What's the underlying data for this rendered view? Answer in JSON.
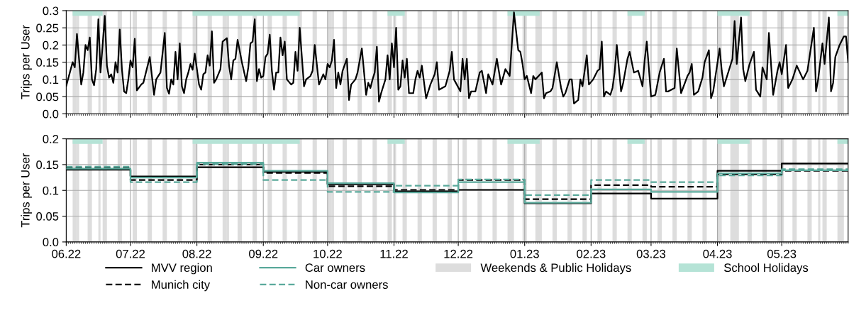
{
  "chart_data": [
    {
      "type": "line",
      "ylabel": "Trips per User",
      "xlim": [
        "2022-06-01",
        "2023-06-01"
      ],
      "ylim": [
        0,
        0.3
      ],
      "yticks": [
        {
          "value": 0,
          "label": "0.0"
        },
        0.05,
        0.1,
        0.15,
        0.2,
        0.25,
        0.3
      ],
      "xticks": [
        {
          "value": "2022-06-01",
          "label": null
        },
        {
          "value": "2022-07-01",
          "label": null
        },
        {
          "value": "2022-08-01",
          "label": null
        },
        {
          "value": "2022-09-01",
          "label": null
        },
        {
          "value": "2022-10-01",
          "label": null
        },
        {
          "value": "2022-11-01",
          "label": null
        },
        {
          "value": "2022-12-01",
          "label": null
        },
        {
          "value": "2023-01-01",
          "label": null
        },
        {
          "value": "2023-02-01",
          "label": null
        },
        {
          "value": "2023-03-01",
          "label": null
        },
        {
          "value": "2023-04-01",
          "label": null
        },
        {
          "value": "2023-05-01",
          "label": null
        }
      ],
      "tick_labels": "y",
      "grid": true,
      "series": [
        {
          "color": "#000000",
          "line_style": "solid",
          "x": [
            "2022-06-01",
            "2022-06-04",
            "2022-06-05",
            "2022-06-06",
            "2022-06-08",
            "2022-06-09",
            "2022-06-10",
            "2022-06-11",
            "2022-06-12",
            "2022-06-13",
            "2022-06-14",
            "2022-06-15",
            "2022-06-16",
            "2022-06-17",
            "2022-06-18",
            "2022-06-19",
            "2022-06-20",
            "2022-06-21",
            "2022-06-22",
            "2022-06-23",
            "2022-06-24",
            "2022-06-25",
            "2022-06-26",
            "2022-06-27",
            "2022-06-28",
            "2022-06-29",
            "2022-06-30",
            "2022-07-01",
            "2022-07-02",
            "2022-07-03",
            "2022-07-04",
            "2022-07-06",
            "2022-07-07",
            "2022-07-10",
            "2022-07-12",
            "2022-07-13",
            "2022-07-15",
            "2022-07-17",
            "2022-07-18",
            "2022-07-19",
            "2022-07-20",
            "2022-07-21",
            "2022-07-22",
            "2022-07-23",
            "2022-07-24",
            "2022-07-25",
            "2022-07-26",
            "2022-07-27",
            "2022-07-28",
            "2022-07-29",
            "2022-07-30",
            "2022-07-31",
            "2022-08-02",
            "2022-08-03",
            "2022-08-04",
            "2022-08-05",
            "2022-08-06",
            "2022-08-07",
            "2022-08-08",
            "2022-08-09",
            "2022-08-10",
            "2022-08-12",
            "2022-08-13",
            "2022-08-14",
            "2022-08-15",
            "2022-08-16",
            "2022-08-17",
            "2022-08-18",
            "2022-08-19",
            "2022-08-20",
            "2022-08-22",
            "2022-08-24",
            "2022-08-25",
            "2022-08-26",
            "2022-08-27",
            "2022-08-28",
            "2022-08-29",
            "2022-08-30",
            "2022-08-31",
            "2022-09-01",
            "2022-09-02",
            "2022-09-03",
            "2022-09-04",
            "2022-09-05",
            "2022-09-06",
            "2022-09-07",
            "2022-09-08",
            "2022-09-09",
            "2022-09-10",
            "2022-09-11",
            "2022-09-12",
            "2022-09-14",
            "2022-09-15",
            "2022-09-16",
            "2022-09-17",
            "2022-09-18",
            "2022-09-20",
            "2022-09-21",
            "2022-09-23",
            "2022-09-24",
            "2022-09-25",
            "2022-09-27",
            "2022-09-29",
            "2022-09-30",
            "2022-10-01",
            "2022-10-02",
            "2022-10-03",
            "2022-10-04",
            "2022-10-05",
            "2022-10-06",
            "2022-10-07",
            "2022-10-08",
            "2022-10-10",
            "2022-10-11",
            "2022-10-12",
            "2022-10-14",
            "2022-10-15",
            "2022-10-17",
            "2022-10-19",
            "2022-10-20",
            "2022-10-21",
            "2022-10-22",
            "2022-10-23",
            "2022-10-24",
            "2022-10-25",
            "2022-10-26",
            "2022-10-28",
            "2022-10-29",
            "2022-10-30",
            "2022-10-31",
            "2022-11-01",
            "2022-11-02",
            "2022-11-03",
            "2022-11-04",
            "2022-11-05",
            "2022-11-06",
            "2022-11-07",
            "2022-11-08",
            "2022-11-10",
            "2022-11-11",
            "2022-11-12",
            "2022-11-13",
            "2022-11-14",
            "2022-11-16",
            "2022-11-18",
            "2022-11-20",
            "2022-11-21",
            "2022-11-22",
            "2022-11-25",
            "2022-11-27",
            "2022-11-28",
            "2022-11-29",
            "2022-12-02",
            "2022-12-03",
            "2022-12-04",
            "2022-12-05",
            "2022-12-06",
            "2022-12-07",
            "2022-12-09",
            "2022-12-11",
            "2022-12-12",
            "2022-12-14",
            "2022-12-15",
            "2022-12-16",
            "2022-12-17",
            "2022-12-19",
            "2022-12-21",
            "2022-12-23",
            "2022-12-25",
            "2022-12-27",
            "2022-12-29",
            "2022-12-30",
            "2022-12-31",
            "2023-01-01",
            "2023-01-02",
            "2023-01-04",
            "2023-01-05",
            "2023-01-06",
            "2023-01-09",
            "2023-01-10",
            "2023-01-11",
            "2023-01-13",
            "2023-01-14",
            "2023-01-16",
            "2023-01-18",
            "2023-01-19",
            "2023-01-20",
            "2023-01-22",
            "2023-01-23",
            "2023-01-24",
            "2023-01-26",
            "2023-01-27",
            "2023-01-28",
            "2023-01-30",
            "2023-01-31",
            "2023-02-02",
            "2023-02-04",
            "2023-02-05",
            "2023-02-06",
            "2023-02-07",
            "2023-02-08",
            "2023-02-10",
            "2023-02-11",
            "2023-02-12",
            "2023-02-13",
            "2023-02-15",
            "2023-02-16",
            "2023-02-18",
            "2023-02-19",
            "2023-02-21",
            "2023-02-23",
            "2023-02-25",
            "2023-02-26",
            "2023-02-27",
            "2023-03-01",
            "2023-03-03",
            "2023-03-05",
            "2023-03-07",
            "2023-03-08",
            "2023-03-09",
            "2023-03-12",
            "2023-03-13",
            "2023-03-15",
            "2023-03-18",
            "2023-03-19",
            "2023-03-20",
            "2023-03-21",
            "2023-03-23",
            "2023-03-25",
            "2023-03-26",
            "2023-03-28",
            "2023-03-29",
            "2023-03-30",
            "2023-04-02",
            "2023-04-03",
            "2023-04-04",
            "2023-04-07",
            "2023-04-08",
            "2023-04-09",
            "2023-04-10",
            "2023-04-12",
            "2023-04-13",
            "2023-04-14",
            "2023-04-16",
            "2023-04-18",
            "2023-04-19",
            "2023-04-21",
            "2023-04-22",
            "2023-04-24",
            "2023-04-25",
            "2023-04-27",
            "2023-04-29",
            "2023-04-30",
            "2023-05-01",
            "2023-05-03",
            "2023-05-04",
            "2023-05-06",
            "2023-05-08",
            "2023-05-11",
            "2023-05-13",
            "2023-05-16",
            "2023-05-17",
            "2023-05-18",
            "2023-05-20",
            "2023-05-21",
            "2023-05-23",
            "2023-05-24",
            "2023-05-25",
            "2023-05-26",
            "2023-05-28",
            "2023-05-30",
            "2023-05-31",
            "2023-06-01"
          ],
          "values": [
            0.081,
            0.15,
            0.135,
            0.232,
            0.085,
            0.12,
            0.2,
            0.185,
            0.222,
            0.1,
            0.083,
            0.13,
            0.275,
            0.12,
            0.2,
            0.285,
            0.14,
            0.105,
            0.115,
            0.09,
            0.15,
            0.12,
            0.245,
            0.13,
            0.065,
            0.06,
            0.1,
            0.155,
            0.135,
            0.218,
            0.068,
            0.085,
            0.09,
            0.165,
            0.055,
            0.1,
            0.12,
            0.235,
            0.075,
            0.058,
            0.1,
            0.085,
            0.18,
            0.1,
            0.205,
            0.08,
            0.06,
            0.1,
            0.12,
            0.145,
            0.128,
            0.175,
            0.085,
            0.07,
            0.115,
            0.12,
            0.17,
            0.14,
            0.24,
            0.09,
            0.1,
            0.13,
            0.21,
            0.215,
            0.22,
            0.14,
            0.1,
            0.155,
            0.16,
            0.215,
            0.15,
            0.095,
            0.135,
            0.205,
            0.21,
            0.275,
            0.095,
            0.13,
            0.105,
            0.11,
            0.165,
            0.175,
            0.23,
            0.125,
            0.07,
            0.12,
            0.12,
            0.222,
            0.17,
            0.21,
            0.1,
            0.085,
            0.09,
            0.18,
            0.125,
            0.25,
            0.08,
            0.1,
            0.11,
            0.125,
            0.2,
            0.085,
            0.115,
            0.1,
            0.145,
            0.135,
            0.155,
            0.215,
            0.075,
            0.12,
            0.085,
            0.125,
            0.16,
            0.04,
            0.085,
            0.1,
            0.12,
            0.19,
            0.055,
            0.09,
            0.075,
            0.1,
            0.12,
            0.195,
            0.035,
            0.06,
            0.1,
            0.17,
            0.1,
            0.205,
            0.135,
            0.25,
            0.07,
            0.08,
            0.155,
            0.105,
            0.16,
            0.06,
            0.06,
            0.1,
            0.125,
            0.105,
            0.14,
            0.045,
            0.085,
            0.115,
            0.15,
            0.07,
            0.08,
            0.125,
            0.18,
            0.1,
            0.065,
            0.16,
            0.1,
            0.16,
            0.045,
            0.065,
            0.065,
            0.12,
            0.125,
            0.06,
            0.115,
            0.1,
            0.085,
            0.16,
            0.085,
            0.13,
            0.11,
            0.295,
            0.185,
            0.18,
            0.145,
            0.1,
            0.11,
            0.06,
            0.11,
            0.1,
            0.12,
            0.045,
            0.06,
            0.065,
            0.075,
            0.15,
            0.075,
            0.05,
            0.06,
            0.1,
            0.1,
            0.03,
            0.04,
            0.1,
            0.08,
            0.17,
            0.085,
            0.1,
            0.125,
            0.13,
            0.21,
            0.05,
            0.065,
            0.055,
            0.075,
            0.12,
            0.2,
            0.065,
            0.09,
            0.16,
            0.18,
            0.12,
            0.125,
            0.08,
            0.155,
            0.21,
            0.05,
            0.055,
            0.12,
            0.16,
            0.065,
            0.065,
            0.075,
            0.19,
            0.06,
            0.11,
            0.12,
            0.145,
            0.055,
            0.065,
            0.105,
            0.15,
            0.185,
            0.045,
            0.065,
            0.19,
            0.125,
            0.08,
            0.14,
            0.16,
            0.27,
            0.145,
            0.28,
            0.13,
            0.095,
            0.145,
            0.18,
            0.07,
            0.05,
            0.135,
            0.1,
            0.235,
            0.055,
            0.125,
            0.15,
            0.115,
            0.2,
            0.075,
            0.1,
            0.14,
            0.1,
            0.125,
            0.25,
            0.065,
            0.1,
            0.205,
            0.145,
            0.28,
            0.065,
            0.09,
            0.165,
            0.2,
            0.225,
            0.225,
            0.15
          ]
        }
      ],
      "bands": [
        {
          "axis": "x",
          "from": "2022-06-04",
          "to": "2022-06-06",
          "color": "#dddddd"
        },
        {
          "axis": "x",
          "from": "2022-06-06",
          "to": "2022-06-07",
          "color": "#dddddd"
        },
        {
          "axis": "x",
          "from": "2022-06-11",
          "to": "2022-06-13",
          "color": "#dddddd"
        },
        {
          "axis": "x",
          "from": "2022-06-16",
          "to": "2022-06-17",
          "color": "#dddddd"
        },
        {
          "axis": "x",
          "from": "2022-06-18",
          "to": "2022-06-20",
          "color": "#dddddd"
        },
        {
          "axis": "x",
          "from": "2022-06-25",
          "to": "2022-06-27",
          "color": "#dddddd"
        },
        {
          "axis": "x",
          "from": "2022-07-02",
          "to": "2022-07-04",
          "color": "#dddddd"
        },
        {
          "axis": "x",
          "from": "2022-07-09",
          "to": "2022-07-11",
          "color": "#dddddd"
        },
        {
          "axis": "x",
          "from": "2022-07-16",
          "to": "2022-07-18",
          "color": "#dddddd"
        },
        {
          "axis": "x",
          "from": "2022-07-23",
          "to": "2022-07-25",
          "color": "#dddddd"
        },
        {
          "axis": "x",
          "from": "2022-07-30",
          "to": "2022-08-01",
          "color": "#dddddd"
        },
        {
          "axis": "x",
          "from": "2022-08-06",
          "to": "2022-08-08",
          "color": "#dddddd"
        },
        {
          "axis": "x",
          "from": "2022-08-13",
          "to": "2022-08-15",
          "color": "#dddddd"
        },
        {
          "axis": "x",
          "from": "2022-08-15",
          "to": "2022-08-16",
          "color": "#dddddd"
        },
        {
          "axis": "x",
          "from": "2022-08-20",
          "to": "2022-08-22",
          "color": "#dddddd"
        },
        {
          "axis": "x",
          "from": "2022-08-27",
          "to": "2022-08-29",
          "color": "#dddddd"
        },
        {
          "axis": "x",
          "from": "2022-09-03",
          "to": "2022-09-05",
          "color": "#dddddd"
        },
        {
          "axis": "x",
          "from": "2022-09-10",
          "to": "2022-09-12",
          "color": "#dddddd"
        },
        {
          "axis": "x",
          "from": "2022-09-17",
          "to": "2022-09-19",
          "color": "#dddddd"
        },
        {
          "axis": "x",
          "from": "2022-09-24",
          "to": "2022-09-26",
          "color": "#dddddd"
        },
        {
          "axis": "x",
          "from": "2022-10-01",
          "to": "2022-10-03",
          "color": "#dddddd"
        },
        {
          "axis": "x",
          "from": "2022-10-03",
          "to": "2022-10-04",
          "color": "#dddddd"
        },
        {
          "axis": "x",
          "from": "2022-10-08",
          "to": "2022-10-10",
          "color": "#dddddd"
        },
        {
          "axis": "x",
          "from": "2022-10-15",
          "to": "2022-10-17",
          "color": "#dddddd"
        },
        {
          "axis": "x",
          "from": "2022-10-22",
          "to": "2022-10-24",
          "color": "#dddddd"
        },
        {
          "axis": "x",
          "from": "2022-10-29",
          "to": "2022-10-31",
          "color": "#dddddd"
        },
        {
          "axis": "x",
          "from": "2022-11-01",
          "to": "2022-11-02",
          "color": "#dddddd"
        },
        {
          "axis": "x",
          "from": "2022-11-05",
          "to": "2022-11-07",
          "color": "#dddddd"
        },
        {
          "axis": "x",
          "from": "2022-11-12",
          "to": "2022-11-14",
          "color": "#dddddd"
        },
        {
          "axis": "x",
          "from": "2022-11-19",
          "to": "2022-11-21",
          "color": "#dddddd"
        },
        {
          "axis": "x",
          "from": "2022-11-26",
          "to": "2022-11-28",
          "color": "#dddddd"
        },
        {
          "axis": "x",
          "from": "2022-12-03",
          "to": "2022-12-05",
          "color": "#dddddd"
        },
        {
          "axis": "x",
          "from": "2022-12-10",
          "to": "2022-12-12",
          "color": "#dddddd"
        },
        {
          "axis": "x",
          "from": "2022-12-17",
          "to": "2022-12-19",
          "color": "#dddddd"
        },
        {
          "axis": "x",
          "from": "2022-12-24",
          "to": "2022-12-27",
          "color": "#dddddd"
        },
        {
          "axis": "x",
          "from": "2022-12-31",
          "to": "2023-01-02",
          "color": "#dddddd"
        },
        {
          "axis": "x",
          "from": "2023-01-06",
          "to": "2023-01-09",
          "color": "#dddddd"
        },
        {
          "axis": "x",
          "from": "2023-01-14",
          "to": "2023-01-16",
          "color": "#dddddd"
        },
        {
          "axis": "x",
          "from": "2023-01-21",
          "to": "2023-01-23",
          "color": "#dddddd"
        },
        {
          "axis": "x",
          "from": "2023-01-28",
          "to": "2023-01-30",
          "color": "#dddddd"
        },
        {
          "axis": "x",
          "from": "2023-02-04",
          "to": "2023-02-06",
          "color": "#dddddd"
        },
        {
          "axis": "x",
          "from": "2023-02-11",
          "to": "2023-02-13",
          "color": "#dddddd"
        },
        {
          "axis": "x",
          "from": "2023-02-18",
          "to": "2023-02-20",
          "color": "#dddddd"
        },
        {
          "axis": "x",
          "from": "2023-02-25",
          "to": "2023-02-27",
          "color": "#dddddd"
        },
        {
          "axis": "x",
          "from": "2023-03-04",
          "to": "2023-03-06",
          "color": "#dddddd"
        },
        {
          "axis": "x",
          "from": "2023-03-11",
          "to": "2023-03-13",
          "color": "#dddddd"
        },
        {
          "axis": "x",
          "from": "2023-03-18",
          "to": "2023-03-20",
          "color": "#dddddd"
        },
        {
          "axis": "x",
          "from": "2023-03-25",
          "to": "2023-03-27",
          "color": "#dddddd"
        },
        {
          "axis": "x",
          "from": "2023-04-01",
          "to": "2023-04-03",
          "color": "#dddddd"
        },
        {
          "axis": "x",
          "from": "2023-04-07",
          "to": "2023-04-11",
          "color": "#dddddd"
        },
        {
          "axis": "x",
          "from": "2023-04-15",
          "to": "2023-04-17",
          "color": "#dddddd"
        },
        {
          "axis": "x",
          "from": "2023-04-22",
          "to": "2023-04-24",
          "color": "#dddddd"
        },
        {
          "axis": "x",
          "from": "2023-04-29",
          "to": "2023-05-02",
          "color": "#dddddd"
        },
        {
          "axis": "x",
          "from": "2023-05-06",
          "to": "2023-05-08",
          "color": "#dddddd"
        },
        {
          "axis": "x",
          "from": "2023-05-13",
          "to": "2023-05-15",
          "color": "#dddddd"
        },
        {
          "axis": "x",
          "from": "2023-05-18",
          "to": "2023-05-19",
          "color": "#dddddd"
        },
        {
          "axis": "x",
          "from": "2023-05-20",
          "to": "2023-05-22",
          "color": "#dddddd"
        },
        {
          "axis": "x",
          "from": "2023-05-27",
          "to": "2023-05-30",
          "color": "#dddddd"
        },
        {
          "axis": "x",
          "from": "2022-06-04",
          "to": "2022-06-18",
          "color": "#b5e3d6"
        },
        {
          "axis": "x",
          "from": "2022-07-30",
          "to": "2022-09-18",
          "color": "#b5e3d6"
        },
        {
          "axis": "x",
          "from": "2022-10-29",
          "to": "2022-11-06",
          "color": "#b5e3d6"
        },
        {
          "axis": "x",
          "from": "2022-12-24",
          "to": "2023-01-08",
          "color": "#b5e3d6"
        },
        {
          "axis": "x",
          "from": "2023-02-18",
          "to": "2023-02-26",
          "color": "#b5e3d6"
        },
        {
          "axis": "x",
          "from": "2023-04-01",
          "to": "2023-04-16",
          "color": "#b5e3d6"
        },
        {
          "axis": "x",
          "from": "2023-05-27",
          "to": "2023-06-01",
          "color": "#b5e3d6"
        }
      ]
    },
    {
      "type": "step",
      "ylabel": "Trips per User",
      "xlim": [
        "2022-06-01",
        "2023-06-01"
      ],
      "ylim": [
        0,
        0.2
      ],
      "yticks": [
        {
          "value": 0,
          "label": "0.0"
        },
        0.05,
        0.1,
        0.15,
        0.2
      ],
      "xticks": [
        {
          "value": "2022-06-01",
          "label": "06.22"
        },
        {
          "value": "2022-07-01",
          "label": "07.22"
        },
        {
          "value": "2022-08-01",
          "label": "08.22"
        },
        {
          "value": "2022-09-01",
          "label": "09.22"
        },
        {
          "value": "2022-10-01",
          "label": "10.22"
        },
        {
          "value": "2022-11-01",
          "label": "11.22"
        },
        {
          "value": "2022-12-01",
          "label": "12.22"
        },
        {
          "value": "2023-01-01",
          "label": "01.23"
        },
        {
          "value": "2023-02-01",
          "label": "02.23"
        },
        {
          "value": "2023-03-01",
          "label": "03.23"
        },
        {
          "value": "2023-04-01",
          "label": "04.23"
        },
        {
          "value": "2023-05-01",
          "label": "05.23"
        }
      ],
      "grid": true,
      "legend": "bottom",
      "x": [
        "2022-06-01",
        "2022-07-01",
        "2022-08-01",
        "2022-09-01",
        "2022-10-01",
        "2022-11-01",
        "2022-12-01",
        "2023-01-01",
        "2023-02-01",
        "2023-03-01",
        "2023-04-01",
        "2023-05-01",
        "2023-06-01"
      ],
      "series": [
        {
          "name": "MVV region",
          "color": "#000000",
          "line_style": "solid",
          "values": [
            0.14,
            0.127,
            0.145,
            0.136,
            0.112,
            0.098,
            0.101,
            0.075,
            0.094,
            0.084,
            0.138,
            0.152,
            0.152
          ]
        },
        {
          "name": "Munich city",
          "color": "#000000",
          "line_style": "dashed",
          "values": [
            0.144,
            0.12,
            0.15,
            0.134,
            0.108,
            0.101,
            0.12,
            0.083,
            0.11,
            0.107,
            0.131,
            0.138,
            0.138
          ]
        },
        {
          "name": "Car owners",
          "color": "#5aa99b",
          "line_style": "solid",
          "values": [
            0.142,
            0.125,
            0.154,
            0.138,
            0.114,
            0.096,
            0.116,
            0.076,
            0.102,
            0.097,
            0.133,
            0.139,
            0.139
          ]
        },
        {
          "name": "Non-car owners",
          "color": "#5aa99b",
          "line_style": "dashed",
          "values": [
            0.146,
            0.116,
            0.151,
            0.12,
            0.097,
            0.109,
            0.121,
            0.091,
            0.12,
            0.116,
            0.129,
            0.141,
            0.141
          ]
        }
      ],
      "bands": [
        {
          "axis": "x",
          "from": "2022-06-04",
          "to": "2022-06-06",
          "color": "#dddddd",
          "label": "Weekends & Public Holidays"
        },
        {
          "axis": "x",
          "from": "2022-06-06",
          "to": "2022-06-07",
          "color": "#dddddd"
        },
        {
          "axis": "x",
          "from": "2022-06-11",
          "to": "2022-06-13",
          "color": "#dddddd"
        },
        {
          "axis": "x",
          "from": "2022-06-16",
          "to": "2022-06-17",
          "color": "#dddddd"
        },
        {
          "axis": "x",
          "from": "2022-06-18",
          "to": "2022-06-20",
          "color": "#dddddd"
        },
        {
          "axis": "x",
          "from": "2022-06-25",
          "to": "2022-06-27",
          "color": "#dddddd"
        },
        {
          "axis": "x",
          "from": "2022-07-02",
          "to": "2022-07-04",
          "color": "#dddddd"
        },
        {
          "axis": "x",
          "from": "2022-07-09",
          "to": "2022-07-11",
          "color": "#dddddd"
        },
        {
          "axis": "x",
          "from": "2022-07-16",
          "to": "2022-07-18",
          "color": "#dddddd"
        },
        {
          "axis": "x",
          "from": "2022-07-23",
          "to": "2022-07-25",
          "color": "#dddddd"
        },
        {
          "axis": "x",
          "from": "2022-07-30",
          "to": "2022-08-01",
          "color": "#dddddd"
        },
        {
          "axis": "x",
          "from": "2022-08-06",
          "to": "2022-08-08",
          "color": "#dddddd"
        },
        {
          "axis": "x",
          "from": "2022-08-13",
          "to": "2022-08-15",
          "color": "#dddddd"
        },
        {
          "axis": "x",
          "from": "2022-08-15",
          "to": "2022-08-16",
          "color": "#dddddd"
        },
        {
          "axis": "x",
          "from": "2022-08-20",
          "to": "2022-08-22",
          "color": "#dddddd"
        },
        {
          "axis": "x",
          "from": "2022-08-27",
          "to": "2022-08-29",
          "color": "#dddddd"
        },
        {
          "axis": "x",
          "from": "2022-09-03",
          "to": "2022-09-05",
          "color": "#dddddd"
        },
        {
          "axis": "x",
          "from": "2022-09-10",
          "to": "2022-09-12",
          "color": "#dddddd"
        },
        {
          "axis": "x",
          "from": "2022-09-17",
          "to": "2022-09-19",
          "color": "#dddddd"
        },
        {
          "axis": "x",
          "from": "2022-09-24",
          "to": "2022-09-26",
          "color": "#dddddd"
        },
        {
          "axis": "x",
          "from": "2022-10-01",
          "to": "2022-10-03",
          "color": "#dddddd"
        },
        {
          "axis": "x",
          "from": "2022-10-03",
          "to": "2022-10-04",
          "color": "#dddddd"
        },
        {
          "axis": "x",
          "from": "2022-10-08",
          "to": "2022-10-10",
          "color": "#dddddd"
        },
        {
          "axis": "x",
          "from": "2022-10-15",
          "to": "2022-10-17",
          "color": "#dddddd"
        },
        {
          "axis": "x",
          "from": "2022-10-22",
          "to": "2022-10-24",
          "color": "#dddddd"
        },
        {
          "axis": "x",
          "from": "2022-10-29",
          "to": "2022-10-31",
          "color": "#dddddd"
        },
        {
          "axis": "x",
          "from": "2022-11-01",
          "to": "2022-11-02",
          "color": "#dddddd"
        },
        {
          "axis": "x",
          "from": "2022-11-05",
          "to": "2022-11-07",
          "color": "#dddddd"
        },
        {
          "axis": "x",
          "from": "2022-11-12",
          "to": "2022-11-14",
          "color": "#dddddd"
        },
        {
          "axis": "x",
          "from": "2022-11-19",
          "to": "2022-11-21",
          "color": "#dddddd"
        },
        {
          "axis": "x",
          "from": "2022-11-26",
          "to": "2022-11-28",
          "color": "#dddddd"
        },
        {
          "axis": "x",
          "from": "2022-12-03",
          "to": "2022-12-05",
          "color": "#dddddd"
        },
        {
          "axis": "x",
          "from": "2022-12-10",
          "to": "2022-12-12",
          "color": "#dddddd"
        },
        {
          "axis": "x",
          "from": "2022-12-17",
          "to": "2022-12-19",
          "color": "#dddddd"
        },
        {
          "axis": "x",
          "from": "2022-12-24",
          "to": "2022-12-27",
          "color": "#dddddd"
        },
        {
          "axis": "x",
          "from": "2022-12-31",
          "to": "2023-01-02",
          "color": "#dddddd"
        },
        {
          "axis": "x",
          "from": "2023-01-06",
          "to": "2023-01-09",
          "color": "#dddddd"
        },
        {
          "axis": "x",
          "from": "2023-01-14",
          "to": "2023-01-16",
          "color": "#dddddd"
        },
        {
          "axis": "x",
          "from": "2023-01-21",
          "to": "2023-01-23",
          "color": "#dddddd"
        },
        {
          "axis": "x",
          "from": "2023-01-28",
          "to": "2023-01-30",
          "color": "#dddddd"
        },
        {
          "axis": "x",
          "from": "2023-02-04",
          "to": "2023-02-06",
          "color": "#dddddd"
        },
        {
          "axis": "x",
          "from": "2023-02-11",
          "to": "2023-02-13",
          "color": "#dddddd"
        },
        {
          "axis": "x",
          "from": "2023-02-18",
          "to": "2023-02-20",
          "color": "#dddddd"
        },
        {
          "axis": "x",
          "from": "2023-02-25",
          "to": "2023-02-27",
          "color": "#dddddd"
        },
        {
          "axis": "x",
          "from": "2023-03-04",
          "to": "2023-03-06",
          "color": "#dddddd"
        },
        {
          "axis": "x",
          "from": "2023-03-11",
          "to": "2023-03-13",
          "color": "#dddddd"
        },
        {
          "axis": "x",
          "from": "2023-03-18",
          "to": "2023-03-20",
          "color": "#dddddd"
        },
        {
          "axis": "x",
          "from": "2023-03-25",
          "to": "2023-03-27",
          "color": "#dddddd"
        },
        {
          "axis": "x",
          "from": "2023-04-01",
          "to": "2023-04-03",
          "color": "#dddddd"
        },
        {
          "axis": "x",
          "from": "2023-04-07",
          "to": "2023-04-11",
          "color": "#dddddd"
        },
        {
          "axis": "x",
          "from": "2023-04-15",
          "to": "2023-04-17",
          "color": "#dddddd"
        },
        {
          "axis": "x",
          "from": "2023-04-22",
          "to": "2023-04-24",
          "color": "#dddddd"
        },
        {
          "axis": "x",
          "from": "2023-04-29",
          "to": "2023-05-02",
          "color": "#dddddd"
        },
        {
          "axis": "x",
          "from": "2023-05-06",
          "to": "2023-05-08",
          "color": "#dddddd"
        },
        {
          "axis": "x",
          "from": "2023-05-13",
          "to": "2023-05-15",
          "color": "#dddddd"
        },
        {
          "axis": "x",
          "from": "2023-05-18",
          "to": "2023-05-19",
          "color": "#dddddd"
        },
        {
          "axis": "x",
          "from": "2023-05-20",
          "to": "2023-05-22",
          "color": "#dddddd"
        },
        {
          "axis": "x",
          "from": "2023-05-27",
          "to": "2023-05-30",
          "color": "#dddddd"
        },
        {
          "axis": "x",
          "from": "2022-06-04",
          "to": "2022-06-18",
          "color": "#b5e3d6",
          "label": "School Holidays"
        },
        {
          "axis": "x",
          "from": "2022-07-30",
          "to": "2022-09-18",
          "color": "#b5e3d6"
        },
        {
          "axis": "x",
          "from": "2022-10-29",
          "to": "2022-11-06",
          "color": "#b5e3d6"
        },
        {
          "axis": "x",
          "from": "2022-12-24",
          "to": "2023-01-08",
          "color": "#b5e3d6"
        },
        {
          "axis": "x",
          "from": "2023-02-18",
          "to": "2023-02-26",
          "color": "#b5e3d6"
        },
        {
          "axis": "x",
          "from": "2023-04-01",
          "to": "2023-04-16",
          "color": "#b5e3d6"
        },
        {
          "axis": "x",
          "from": "2023-05-27",
          "to": "2023-06-01",
          "color": "#b5e3d6"
        }
      ]
    }
  ]
}
